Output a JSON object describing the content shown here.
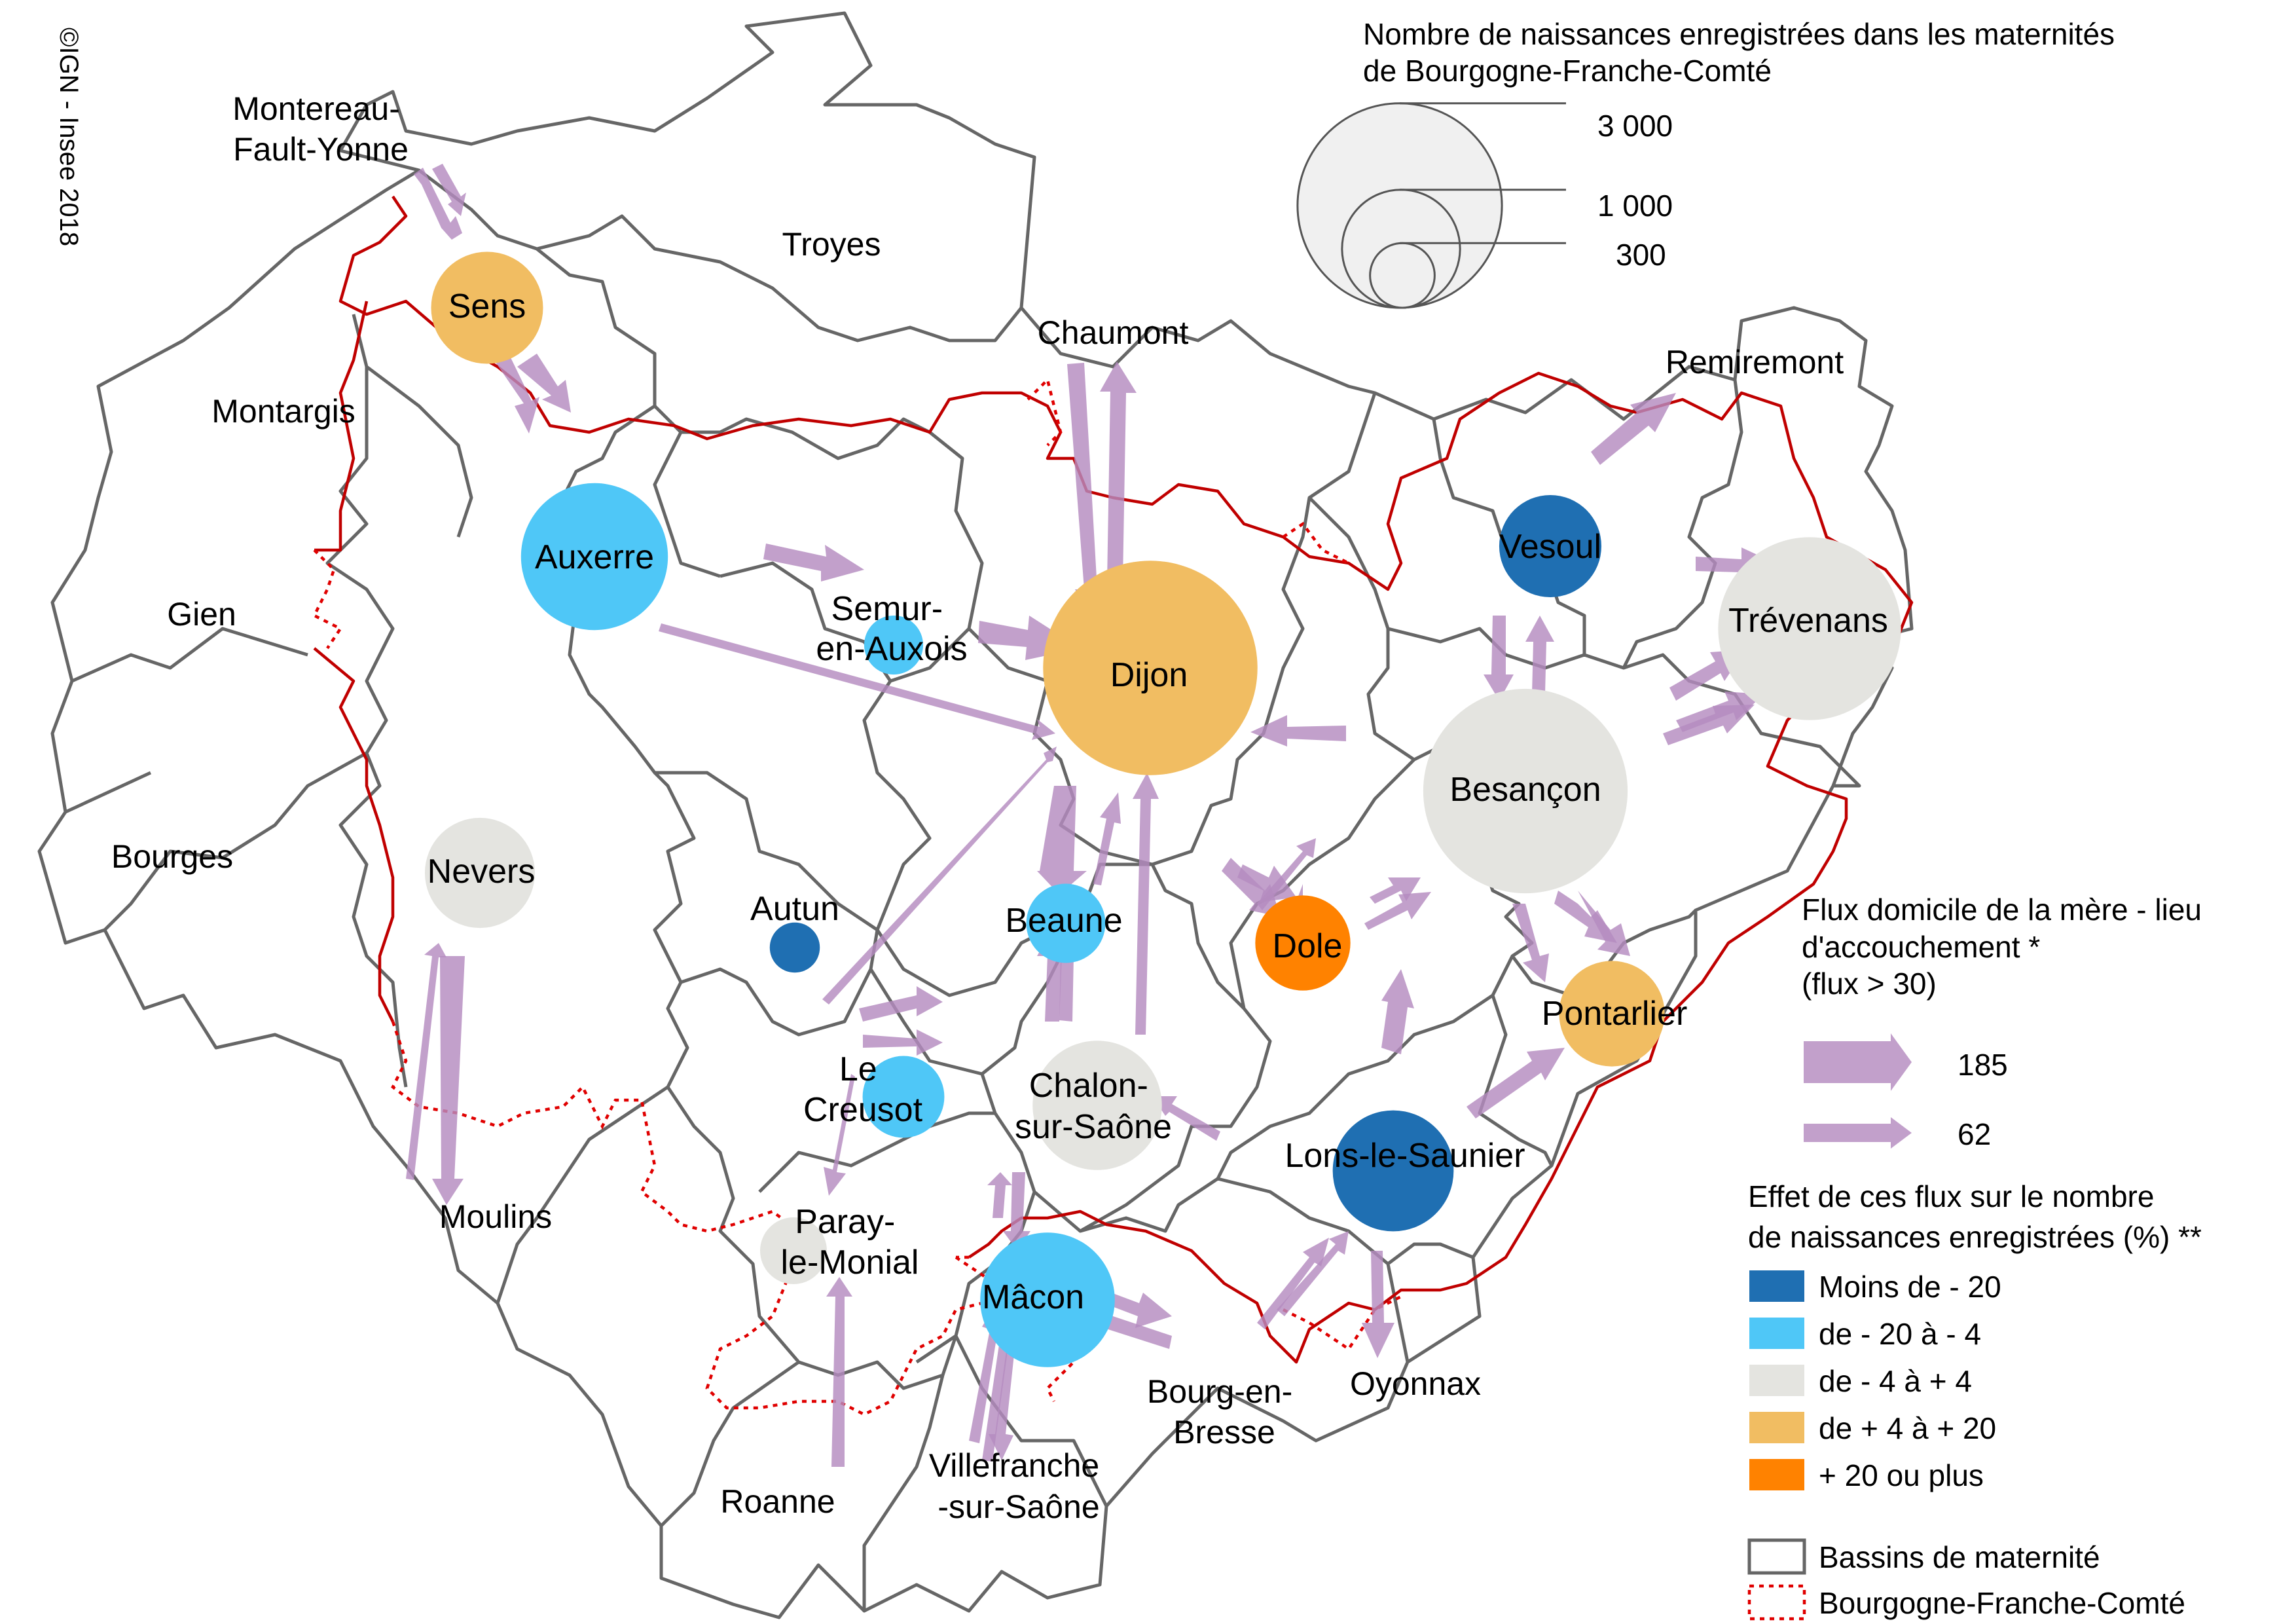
{
  "credit": "©IGN - Insee 2018",
  "colors": {
    "lt_m20": "#1f6fb2",
    "m20_m4": "#4fc7f7",
    "m4_p4": "#e4e4e0",
    "p4_p20": "#f1bd62",
    "p20": "#ff8200",
    "flow": "#b48bc0",
    "basin_border": "#666666",
    "region_border": "#c00000"
  },
  "basins": [
    "Montereau-Fault-Yonne",
    "Troyes",
    "Chaumont",
    "Remiremont",
    "Montargis",
    "Gien",
    "Bourges",
    "Moulins",
    "Roanne",
    "Villefranche-sur-Saône",
    "Bourg-en-Bresse",
    "Oyonnax"
  ],
  "basin_labels": {
    "montereau": [
      "Montereau-",
      "Fault-Yonne"
    ],
    "troyes": [
      "Troyes"
    ],
    "chaumont": [
      "Chaumont"
    ],
    "remiremont": [
      "Remiremont"
    ],
    "montargis": [
      "Montargis"
    ],
    "gien": [
      "Gien"
    ],
    "bourges": [
      "Bourges"
    ],
    "moulins": [
      "Moulins"
    ],
    "roanne": [
      "Roanne"
    ],
    "villefranche": [
      "Villefranche",
      "-sur-Saône"
    ],
    "bourg": [
      "Bourg-en-",
      "Bresse"
    ],
    "oyonnax": [
      "Oyonnax"
    ]
  },
  "maternities": [
    {
      "id": "sens",
      "label": [
        "Sens"
      ],
      "births": 900,
      "effect_class": "p4_p20"
    },
    {
      "id": "auxerre",
      "label": [
        "Auxerre"
      ],
      "births": 1550,
      "effect_class": "m20_m4"
    },
    {
      "id": "semur",
      "label": [
        "Semur-",
        "en-Auxois"
      ],
      "births": 250,
      "effect_class": "m20_m4"
    },
    {
      "id": "dijon",
      "label": [
        "Dijon"
      ],
      "births": 3300,
      "effect_class": "p4_p20"
    },
    {
      "id": "vesoul",
      "label": [
        "Vesoul"
      ],
      "births": 750,
      "effect_class": "lt_m20"
    },
    {
      "id": "trevenans",
      "label": [
        "Trévenans"
      ],
      "births": 2400,
      "effect_class": "m4_p4"
    },
    {
      "id": "besancon",
      "label": [
        "Besançon"
      ],
      "births": 3000,
      "effect_class": "m4_p4"
    },
    {
      "id": "nevers",
      "label": [
        "Nevers"
      ],
      "births": 870,
      "effect_class": "m4_p4"
    },
    {
      "id": "autun",
      "label": [
        "Autun"
      ],
      "births": 180,
      "effect_class": "lt_m20"
    },
    {
      "id": "beaune",
      "label": [
        "Beaune"
      ],
      "births": 450,
      "effect_class": "m20_m4"
    },
    {
      "id": "dole",
      "label": [
        "Dole"
      ],
      "births": 650,
      "effect_class": "p20"
    },
    {
      "id": "pontarlier",
      "label": [
        "Pontarlier"
      ],
      "births": 800,
      "effect_class": "p4_p20"
    },
    {
      "id": "lecreusot",
      "label": [
        "Le",
        "Creusot"
      ],
      "births": 480,
      "effect_class": "m20_m4"
    },
    {
      "id": "chalon",
      "label": [
        "Chalon-",
        "sur-Saône"
      ],
      "births": 1200,
      "effect_class": "m4_p4"
    },
    {
      "id": "lons",
      "label": [
        "Lons-le-Saunier"
      ],
      "births": 1050,
      "effect_class": "lt_m20"
    },
    {
      "id": "paray",
      "label": [
        "Paray-",
        "le-Monial"
      ],
      "births": 320,
      "effect_class": "m4_p4"
    },
    {
      "id": "macon",
      "label": [
        "Mâcon"
      ],
      "births": 1300,
      "effect_class": "m20_m4"
    }
  ],
  "legend": {
    "bubbles_title": [
      "Nombre de naissances enregistrées dans les maternités",
      "de Bourgogne-Franche-Comté"
    ],
    "bubbles": [
      {
        "value": 3000,
        "label": "3 000"
      },
      {
        "value": 1000,
        "label": "1 000"
      },
      {
        "value": 300,
        "label": "300"
      }
    ],
    "flux_title": [
      "Flux domicile de la mère - lieu",
      "d'accouchement *",
      "(flux > 30)"
    ],
    "flux": [
      {
        "value": 185,
        "label": "185"
      },
      {
        "value": 62,
        "label": "62"
      }
    ],
    "effect_title": [
      "Effet de ces flux sur le nombre",
      "de naissances enregistrées (%) **"
    ],
    "effect_classes": [
      {
        "key": "lt_m20",
        "label": "Moins de - 20"
      },
      {
        "key": "m20_m4",
        "label": "de - 20 à - 4"
      },
      {
        "key": "m4_p4",
        "label": "de - 4 à + 4"
      },
      {
        "key": "p4_p20",
        "label": "de + 4 à + 20"
      },
      {
        "key": "p20",
        "label": "+ 20 ou plus"
      }
    ],
    "borders": [
      {
        "key": "basin",
        "label": "Bassins de maternité"
      },
      {
        "key": "region",
        "label": "Bourgogne-Franche-Comté"
      }
    ]
  }
}
